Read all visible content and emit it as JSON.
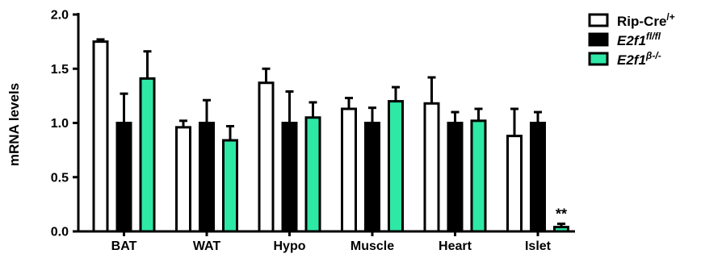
{
  "chart_data": {
    "type": "bar",
    "title": "",
    "xlabel": "",
    "ylabel": "mRNA levels",
    "ylim": [
      0,
      2.0
    ],
    "yticks": [
      "0.0",
      "0.5",
      "1.0",
      "1.5",
      "2.0"
    ],
    "categories": [
      "BAT",
      "WAT",
      "Hypo",
      "Muscle",
      "Heart",
      "Islet"
    ],
    "series": [
      {
        "name": "Rip-Cre/+",
        "legend_base": "Rip-Cre",
        "legend_sup": "/+",
        "italic": false,
        "color": "#ffffff",
        "values": [
          1.75,
          0.96,
          1.37,
          1.13,
          1.18,
          0.88
        ],
        "errors": [
          0.02,
          0.06,
          0.13,
          0.1,
          0.24,
          0.25
        ]
      },
      {
        "name": "E2f1fl/fl",
        "legend_base": "E2f1",
        "legend_sup": "fl/fl",
        "italic": true,
        "color": "#000000",
        "values": [
          1.0,
          1.0,
          1.0,
          1.0,
          1.0,
          1.0
        ],
        "errors": [
          0.27,
          0.21,
          0.29,
          0.14,
          0.1,
          0.1
        ]
      },
      {
        "name": "E2f1β-/-",
        "legend_base": "E2f1",
        "legend_sup": "β-/-",
        "italic": true,
        "color": "#2ee8a6",
        "values": [
          1.41,
          0.84,
          1.05,
          1.2,
          1.02,
          0.04
        ],
        "errors": [
          0.25,
          0.13,
          0.14,
          0.13,
          0.11,
          0.03
        ]
      }
    ],
    "annotations": [
      {
        "category": "Islet",
        "series": 2,
        "text": "**"
      }
    ],
    "grid": false,
    "legend_position": "top-right"
  }
}
